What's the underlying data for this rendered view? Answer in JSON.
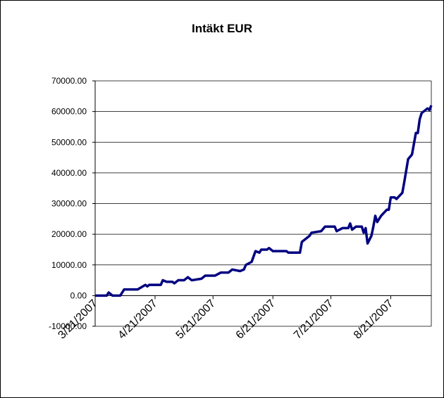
{
  "chart_data": {
    "type": "line",
    "title": "Intäkt EUR",
    "x": [
      "3/21/2007",
      "3/27/2007",
      "3/28/2007",
      "3/30/2007",
      "4/3/2007",
      "4/5/2007",
      "4/12/2007",
      "4/16/2007",
      "4/17/2007",
      "4/18/2007",
      "4/24/2007",
      "4/25/2007",
      "4/27/2007",
      "4/30/2007",
      "5/1/2007",
      "5/3/2007",
      "5/6/2007",
      "5/8/2007",
      "5/10/2007",
      "5/15/2007",
      "5/17/2007",
      "5/22/2007",
      "5/25/2007",
      "5/29/2007",
      "5/31/2007",
      "6/4/2007",
      "6/6/2007",
      "6/7/2007",
      "6/10/2007",
      "6/12/2007",
      "6/14/2007",
      "6/15/2007",
      "6/18/2007",
      "6/19/2007",
      "6/21/2007",
      "6/28/2007",
      "6/29/2007",
      "7/5/2007",
      "7/6/2007",
      "7/10/2007",
      "7/11/2007",
      "7/16/2007",
      "7/18/2007",
      "7/23/2007",
      "7/24/2007",
      "7/27/2007",
      "7/30/2007",
      "7/31/2007",
      "8/1/2007",
      "8/3/2007",
      "8/6/2007",
      "8/7/2007",
      "8/8/2007",
      "8/9/2007",
      "8/11/2007",
      "8/12/2007",
      "8/13/2007",
      "8/14/2007",
      "8/16/2007",
      "8/19/2007",
      "8/20/2007",
      "8/21/2007",
      "8/23/2007",
      "8/24/2007",
      "8/27/2007",
      "8/28/2007",
      "8/30/2007",
      "9/1/2007",
      "9/3/2007",
      "9/4/2007",
      "9/5/2007",
      "9/6/2007",
      "9/8/2007",
      "9/9/2007",
      "9/10/2007",
      "9/11/2007"
    ],
    "series": [
      {
        "color": "#000080",
        "values": [
          0,
          0,
          1000,
          0,
          0,
          2000,
          2000,
          3500,
          3000,
          3500,
          3500,
          5000,
          4500,
          4500,
          4000,
          5000,
          5000,
          6000,
          5000,
          5500,
          6500,
          6500,
          7500,
          7500,
          8500,
          8000,
          8500,
          10000,
          11000,
          14500,
          14000,
          15000,
          15000,
          15500,
          14500,
          14500,
          14000,
          14000,
          17500,
          19500,
          20500,
          21000,
          22500,
          22500,
          21000,
          22000,
          22000,
          23500,
          21500,
          22500,
          22500,
          20500,
          22000,
          17000,
          19500,
          22500,
          26000,
          24000,
          26000,
          28000,
          28000,
          32000,
          32000,
          31500,
          33500,
          37000,
          44500,
          46000,
          53000,
          53000,
          57500,
          59500,
          60500,
          61000,
          60500,
          62000
        ]
      }
    ],
    "xlim": [
      "3/21/2007",
      "9/11/2007"
    ],
    "xticks": [
      "3/21/2007",
      "4/21/2007",
      "5/21/2007",
      "6/21/2007",
      "7/21/2007",
      "8/21/2007"
    ],
    "ylim": [
      -10000,
      70000
    ],
    "yticks": [
      {
        "value": -10000,
        "label": "-10000.00"
      },
      {
        "value": 0,
        "label": "0.00"
      },
      {
        "value": 10000,
        "label": "10000.00"
      },
      {
        "value": 20000,
        "label": "20000.00"
      },
      {
        "value": 30000,
        "label": "30000.00"
      },
      {
        "value": 40000,
        "label": "40000.00"
      },
      {
        "value": 50000,
        "label": "50000.00"
      },
      {
        "value": 60000,
        "label": "60000.00"
      },
      {
        "value": 70000,
        "label": "70000.00"
      }
    ],
    "grid": true
  }
}
